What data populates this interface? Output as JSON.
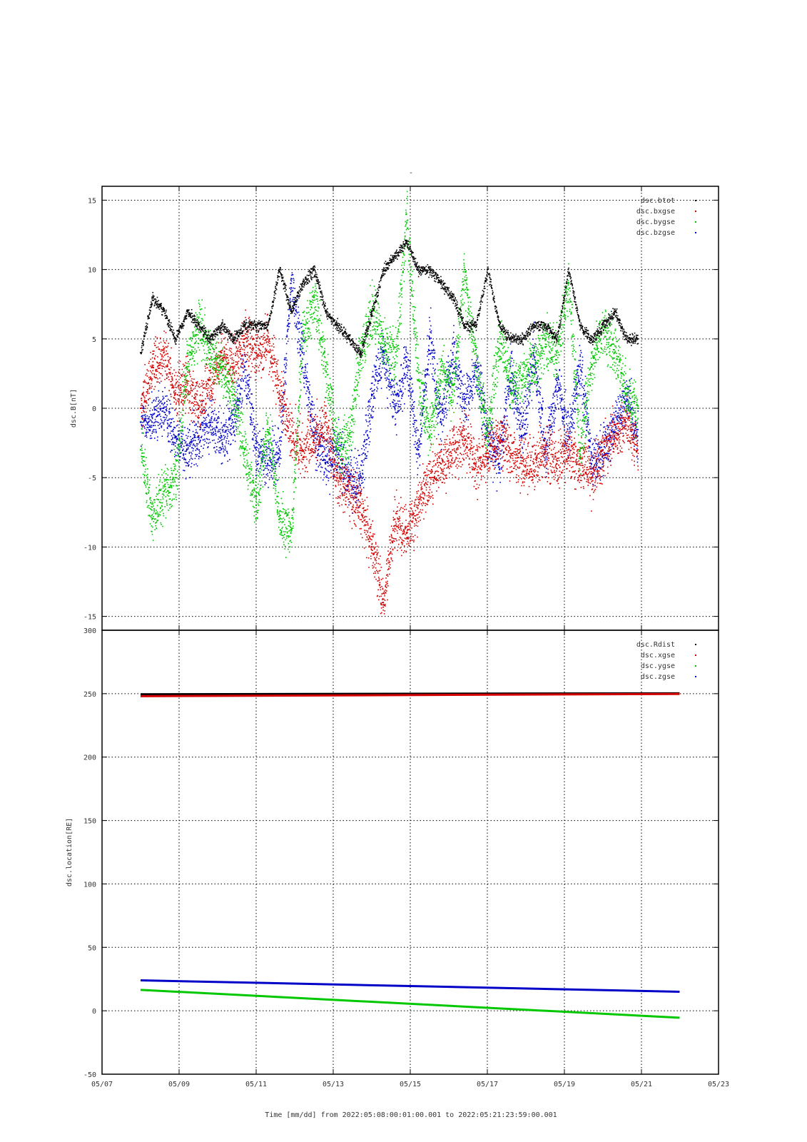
{
  "figure": {
    "top_marker": "-",
    "xlabel": "Time [mm/dd]  from 2022:05:08:00:01:00.001  to  2022:05:21:23:59:00.001"
  },
  "colors": {
    "black": "#000000",
    "red": "#d40000",
    "green": "#00c800",
    "blue": "#0000c8"
  },
  "chart_data": [
    {
      "type": "scatter",
      "ylabel": "dsc.B[nT]",
      "xlabel": "",
      "x_unit": "days since 2022-05-07 00:00",
      "xlim": [
        0,
        16
      ],
      "ylim": [
        -16,
        16
      ],
      "x_ticks": [
        0,
        2,
        4,
        6,
        8,
        10,
        12,
        14,
        16
      ],
      "x_tick_labels": [
        "05/07",
        "05/09",
        "05/11",
        "05/13",
        "05/15",
        "05/17",
        "05/19",
        "05/21",
        "05/23"
      ],
      "y_ticks": [
        15,
        10,
        5,
        0,
        -5,
        -10,
        -15
      ],
      "y_tick_labels": [
        "15",
        "10",
        "5",
        "0",
        "-5",
        "-10",
        "-15"
      ],
      "grid": true,
      "legend": "top-right",
      "series": [
        {
          "name": "dsc.btot",
          "color": "#000000",
          "x": [
            1.0,
            1.3,
            1.6,
            1.9,
            2.2,
            2.5,
            2.8,
            3.1,
            3.4,
            3.7,
            4.0,
            4.3,
            4.6,
            4.9,
            5.2,
            5.5,
            5.8,
            6.1,
            6.4,
            6.7,
            7.0,
            7.3,
            7.6,
            7.9,
            8.2,
            8.5,
            8.8,
            9.1,
            9.4,
            9.7,
            10.0,
            10.3,
            10.6,
            10.9,
            11.2,
            11.5,
            11.8,
            12.1,
            12.4,
            12.7,
            13.0,
            13.3,
            13.6,
            13.9
          ],
          "y": [
            4,
            8,
            7,
            5,
            7,
            6,
            5,
            6,
            5,
            6,
            6,
            6,
            10,
            7,
            9,
            10,
            7,
            6,
            5,
            4,
            7,
            10,
            11,
            12,
            10,
            10,
            9,
            8,
            6,
            6,
            10,
            6,
            5,
            5,
            6,
            6,
            5,
            10,
            6,
            5,
            6,
            7,
            5,
            5
          ]
        },
        {
          "name": "dsc.bxgse",
          "color": "#d40000",
          "x": [
            1.0,
            1.3,
            1.6,
            1.9,
            2.2,
            2.5,
            2.8,
            3.1,
            3.4,
            3.7,
            4.0,
            4.3,
            4.6,
            4.9,
            5.2,
            5.5,
            5.8,
            6.1,
            6.4,
            6.7,
            7.0,
            7.3,
            7.6,
            7.9,
            8.2,
            8.5,
            8.8,
            9.1,
            9.4,
            9.7,
            10.0,
            10.3,
            10.6,
            10.9,
            11.2,
            11.5,
            11.8,
            12.1,
            12.4,
            12.7,
            13.0,
            13.3,
            13.6,
            13.9
          ],
          "y": [
            0,
            3,
            4,
            1,
            2,
            0,
            2,
            4,
            3,
            5,
            4,
            5,
            1,
            -2,
            -3,
            -2,
            -1,
            -5,
            -6,
            -7,
            -10,
            -14,
            -8,
            -9,
            -7,
            -5,
            -4,
            -3,
            -2,
            -4,
            -3,
            -2,
            -3,
            -4,
            -4,
            -3,
            -4,
            -3,
            -4,
            -5,
            -3,
            -2,
            -1,
            -3
          ]
        },
        {
          "name": "dsc.bygse",
          "color": "#00c800",
          "x": [
            1.0,
            1.3,
            1.6,
            1.9,
            2.2,
            2.5,
            2.8,
            3.1,
            3.4,
            3.7,
            4.0,
            4.3,
            4.6,
            4.9,
            5.2,
            5.5,
            5.8,
            6.1,
            6.4,
            6.7,
            7.0,
            7.3,
            7.6,
            7.9,
            8.2,
            8.5,
            8.8,
            9.1,
            9.4,
            9.7,
            10.0,
            10.3,
            10.6,
            10.9,
            11.2,
            11.5,
            11.8,
            12.1,
            12.4,
            12.7,
            13.0,
            13.3,
            13.6,
            13.9
          ],
          "y": [
            -3,
            -8,
            -6,
            -5,
            3,
            6,
            4,
            3,
            1,
            -3,
            -7,
            -1,
            -8,
            -9,
            5,
            8,
            3,
            -3,
            -2,
            4,
            7,
            5,
            3,
            14,
            2,
            -2,
            3,
            1,
            10,
            3,
            -2,
            5,
            2,
            2,
            3,
            5,
            4,
            9,
            -3,
            3,
            6,
            4,
            1,
            0
          ]
        },
        {
          "name": "dsc.bzgse",
          "color": "#0000c8",
          "x": [
            1.0,
            1.3,
            1.6,
            1.9,
            2.2,
            2.5,
            2.8,
            3.1,
            3.4,
            3.7,
            4.0,
            4.3,
            4.6,
            4.9,
            5.2,
            5.5,
            5.8,
            6.1,
            6.4,
            6.7,
            7.0,
            7.3,
            7.6,
            7.9,
            8.2,
            8.5,
            8.8,
            9.1,
            9.4,
            9.7,
            10.0,
            10.3,
            10.6,
            10.9,
            11.2,
            11.5,
            11.8,
            12.1,
            12.4,
            12.7,
            13.0,
            13.3,
            13.6,
            13.9
          ],
          "y": [
            -1,
            -1,
            0,
            -2,
            -3,
            -2,
            -1,
            -2,
            -1,
            3,
            -3,
            -4,
            -3,
            9,
            4,
            -2,
            -4,
            -3,
            -5,
            -5,
            1,
            4,
            0,
            3,
            -3,
            5,
            -1,
            4,
            0,
            3,
            -2,
            -4,
            3,
            -2,
            4,
            -3,
            2,
            -2,
            3,
            -4,
            -3,
            -1,
            1,
            -2
          ]
        }
      ]
    },
    {
      "type": "line",
      "ylabel": "dsc.location[RE]",
      "xlabel": "",
      "x_unit": "days since 2022-05-07 00:00",
      "xlim": [
        0,
        16
      ],
      "ylim": [
        -50,
        300
      ],
      "x_ticks": [
        0,
        2,
        4,
        6,
        8,
        10,
        12,
        14,
        16
      ],
      "x_tick_labels": [
        "05/07",
        "05/09",
        "05/11",
        "05/13",
        "05/15",
        "05/17",
        "05/19",
        "05/21",
        "05/23"
      ],
      "y_ticks": [
        300,
        250,
        200,
        150,
        100,
        50,
        0,
        -50
      ],
      "y_tick_labels": [
        "300",
        "250",
        "200",
        "150",
        "100",
        "50",
        "0",
        "-50"
      ],
      "grid": true,
      "legend": "top-right",
      "series": [
        {
          "name": "dsc.Rdist",
          "color": "#000000",
          "x": [
            1.0,
            14.99
          ],
          "y": [
            249.5,
            250.3
          ]
        },
        {
          "name": "dsc.xgse",
          "color": "#d40000",
          "x": [
            1.0,
            14.99
          ],
          "y": [
            248.0,
            249.8
          ]
        },
        {
          "name": "dsc.ygse",
          "color": "#00c800",
          "x": [
            1.0,
            14.99
          ],
          "y": [
            16.5,
            -5.5
          ]
        },
        {
          "name": "dsc.zgse",
          "color": "#0000c8",
          "x": [
            1.0,
            14.99
          ],
          "y": [
            24.0,
            15.0
          ]
        }
      ]
    }
  ]
}
